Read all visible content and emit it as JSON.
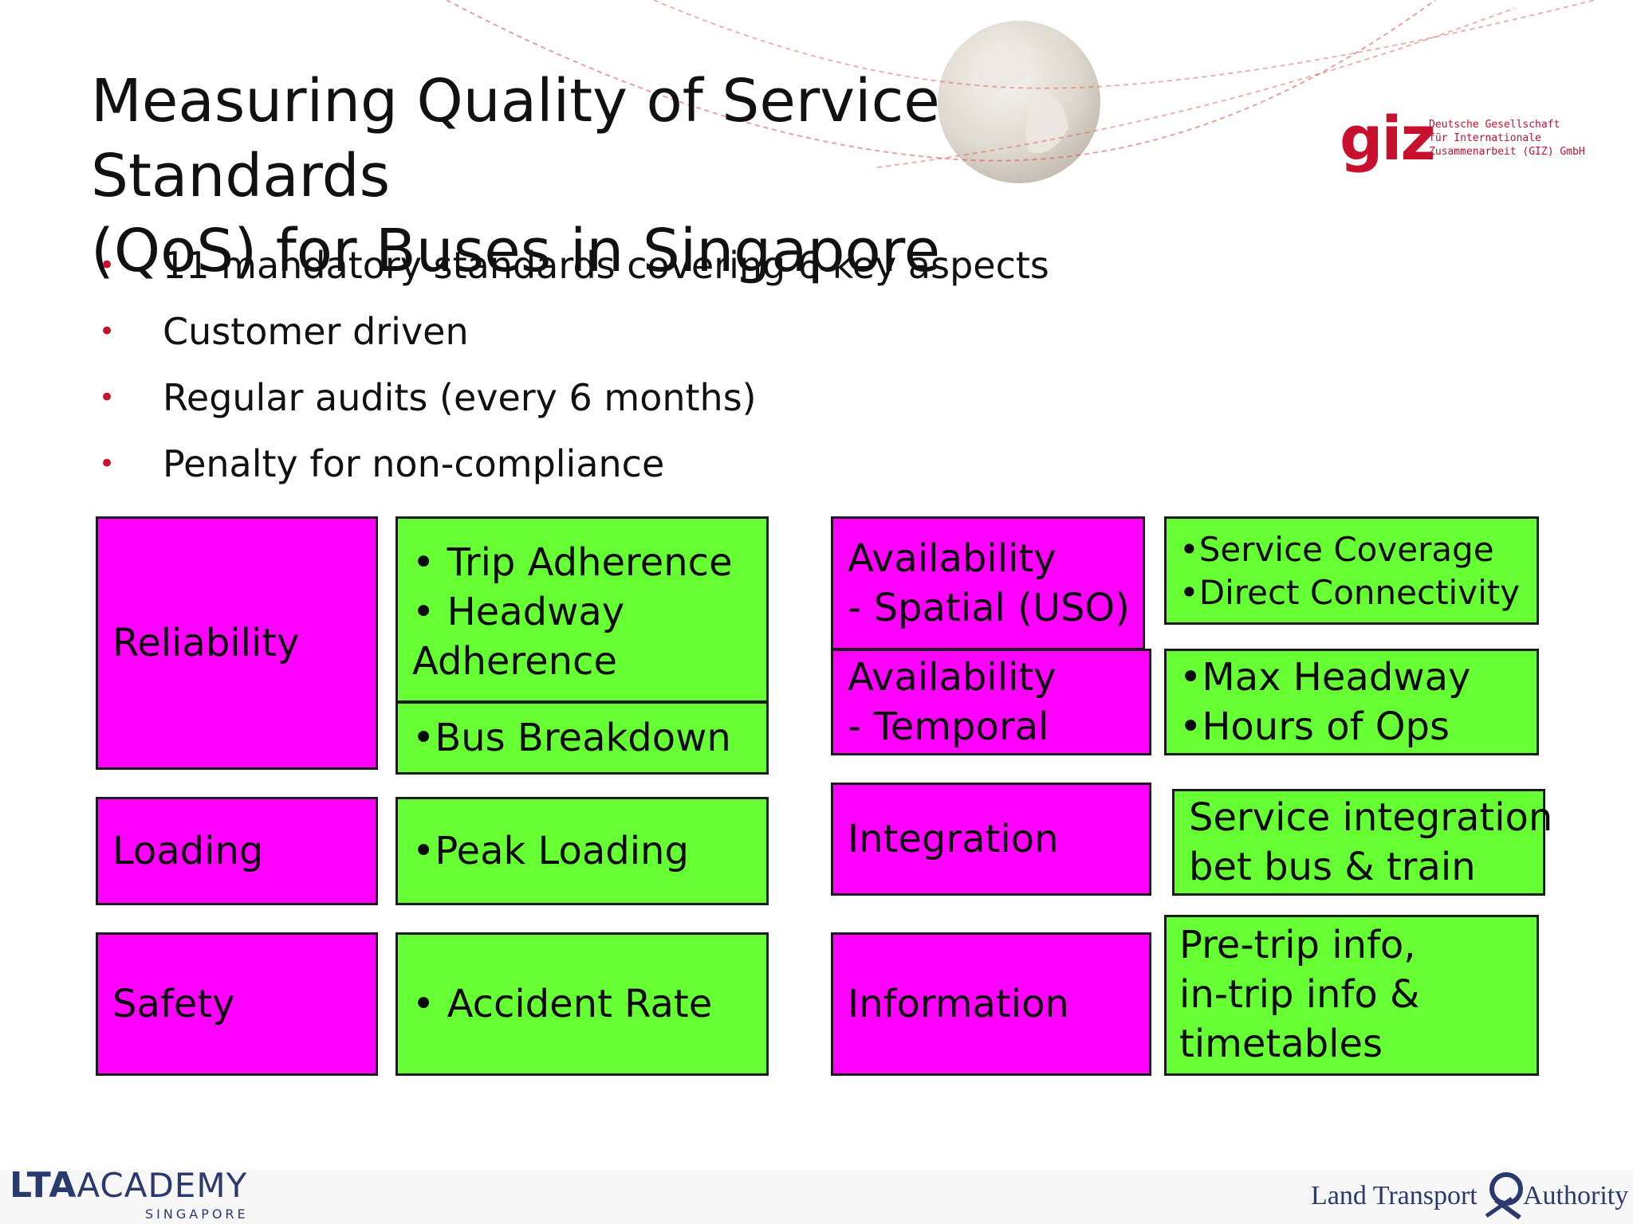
{
  "slide": {
    "title_line1": "Measuring Quality of Service Standards",
    "title_line2": "(QoS) for Buses in Singapore"
  },
  "bullets": [
    "11 mandatory standards covering 6 key aspects",
    "Customer driven",
    "Regular audits (every 6 months)",
    "Penalty for non-compliance"
  ],
  "bullet_glyph": "•",
  "boxes": {
    "reliability": "Reliability",
    "reliability_items_line1": "• Trip Adherence",
    "reliability_items_line2": "• Headway",
    "reliability_items_line3": "Adherence",
    "bus_breakdown": "•Bus Breakdown",
    "loading": "Loading",
    "peak_loading": "•Peak Loading",
    "safety": "Safety",
    "accident_rate": "• Accident Rate",
    "availability_spatial_line1": "Availability",
    "availability_spatial_line2": "- Spatial (USO)",
    "spatial_items_line1": "•Service Coverage",
    "spatial_items_line2": "•Direct Connectivity",
    "availability_temporal_line1": "Availability",
    "availability_temporal_line2": "- Temporal",
    "temporal_items_line1": "•Max Headway",
    "temporal_items_line2": "•Hours of Ops",
    "integration": "Integration",
    "integration_detail_line1": "Service integration",
    "integration_detail_line2": "bet bus & train",
    "information": "Information",
    "information_detail_line1": "Pre-trip info,",
    "information_detail_line2": "in-trip info &",
    "information_detail_line3": "timetables"
  },
  "logos": {
    "giz_word": "giz",
    "giz_line1": "Deutsche Gesellschaft",
    "giz_line2": "für Internationale",
    "giz_line3": "Zusammenarbeit (GIZ) GmbH",
    "lta_academy_bold": "LTA",
    "lta_academy_light": "ACADEMY",
    "lta_academy_sub": "SINGAPORE",
    "lta_left": "Land Transport",
    "lta_right": "Authority"
  },
  "colors": {
    "category_fill": "#ff00ff",
    "detail_fill": "#66ff33",
    "bullet": "#c8102e",
    "brand_red": "#c8102e",
    "brand_navy": "#2a3a6e"
  }
}
